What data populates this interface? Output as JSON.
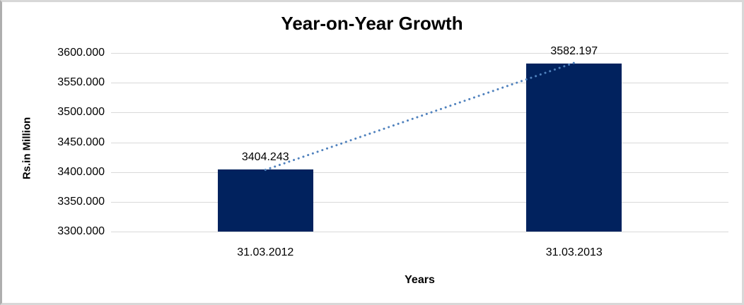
{
  "chart_data": {
    "type": "bar",
    "title": "Year-on-Year Growth",
    "categories": [
      "31.03.2012",
      "31.03.2013"
    ],
    "values": [
      3404.243,
      3582.197
    ],
    "data_labels": [
      "3404.243",
      "3582.197"
    ],
    "xlabel": "Years",
    "ylabel": "Rs.in Million",
    "ylim": [
      3300,
      3600
    ],
    "ytick_labels": [
      "3600.000",
      "3550.000",
      "3500.000",
      "3450.000",
      "3400.000",
      "3350.000",
      "3300.000"
    ],
    "grid": true,
    "legend_position": "none",
    "bar_color": "#01225E",
    "gridline_color": "#d9d9d9",
    "trendline": {
      "type": "linear",
      "style": "dotted",
      "color": "#4f81bd"
    },
    "frame_border_color": "#d8d8d8",
    "background_color": "#ffffff"
  }
}
